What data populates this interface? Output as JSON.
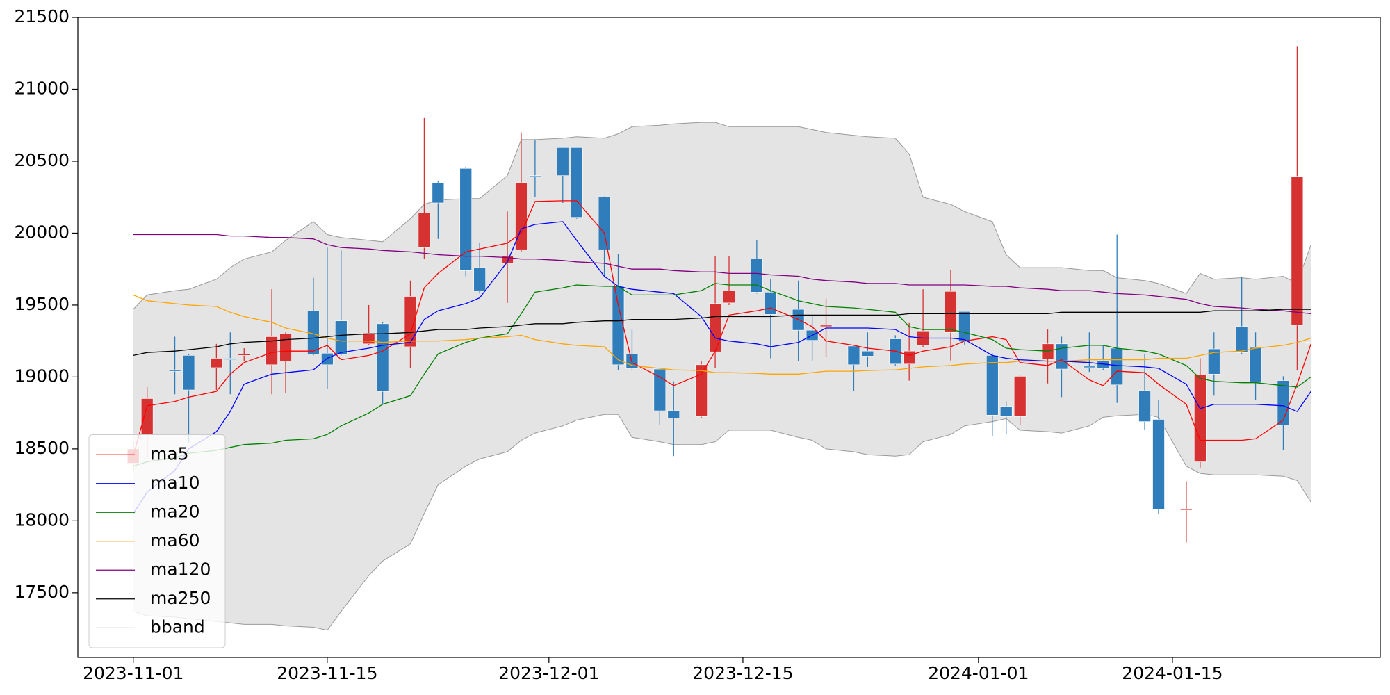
{
  "chart_data": {
    "type": "candlestick",
    "x": [
      "2023-11-01",
      "2023-11-02",
      "2023-11-04",
      "2023-11-05",
      "2023-11-07",
      "2023-11-08",
      "2023-11-09",
      "2023-11-11",
      "2023-11-12",
      "2023-11-14",
      "2023-11-15",
      "2023-11-16",
      "2023-11-18",
      "2023-11-19",
      "2023-11-21",
      "2023-11-22",
      "2023-11-23",
      "2023-11-25",
      "2023-11-26",
      "2023-11-28",
      "2023-11-29",
      "2023-11-30",
      "2023-12-02",
      "2023-12-03",
      "2023-12-05",
      "2023-12-06",
      "2023-12-07",
      "2023-12-09",
      "2023-12-10",
      "2023-12-12",
      "2023-12-13",
      "2023-12-14",
      "2023-12-16",
      "2023-12-17",
      "2023-12-19",
      "2023-12-20",
      "2023-12-21",
      "2023-12-23",
      "2023-12-24",
      "2023-12-26",
      "2023-12-27",
      "2023-12-28",
      "2023-12-30",
      "2023-12-31",
      "2024-01-02",
      "2024-01-03",
      "2024-01-04",
      "2024-01-06",
      "2024-01-07",
      "2024-01-09",
      "2024-01-10",
      "2024-01-11",
      "2024-01-13",
      "2024-01-14",
      "2024-01-16",
      "2024-01-17",
      "2024-01-18",
      "2024-01-20",
      "2024-01-21",
      "2024-01-23",
      "2024-01-24",
      "2024-01-25"
    ],
    "open": [
      18400,
      18600,
      19050,
      19150,
      19065,
      19130,
      19150,
      19085,
      19110,
      19460,
      19165,
      19390,
      19230,
      19370,
      19210,
      19900,
      20350,
      20450,
      19760,
      19790,
      19885,
      20400,
      20595,
      20595,
      20250,
      19630,
      19160,
      19055,
      18765,
      18725,
      19175,
      19515,
      19820,
      19590,
      19470,
      19325,
      19350,
      19215,
      19180,
      19265,
      19090,
      19220,
      19310,
      19455,
      19150,
      18795,
      18725,
      19125,
      19230,
      19075,
      19115,
      19200,
      18905,
      18705,
      18075,
      18410,
      19195,
      19350,
      19205,
      18975,
      19360,
      19240
    ],
    "high": [
      18550,
      18930,
      19280,
      19160,
      19230,
      19310,
      19200,
      19610,
      19310,
      19690,
      19900,
      19880,
      19500,
      19380,
      19670,
      20800,
      20360,
      20460,
      19935,
      20150,
      20700,
      20650,
      20600,
      20600,
      20255,
      19855,
      19330,
      19060,
      18970,
      19110,
      19840,
      19840,
      19950,
      19680,
      19670,
      19435,
      19545,
      19220,
      19310,
      19290,
      19375,
      19610,
      19745,
      19460,
      19165,
      18830,
      19010,
      19330,
      19280,
      19310,
      19220,
      19990,
      19160,
      18840,
      18275,
      19130,
      19310,
      19695,
      19310,
      19005,
      21300,
      19240
    ],
    "low": [
      18350,
      18450,
      18880,
      18540,
      18910,
      18880,
      19110,
      18880,
      18890,
      19150,
      18920,
      19150,
      19220,
      18810,
      19065,
      19820,
      19960,
      19700,
      19580,
      19515,
      19870,
      20250,
      20210,
      20100,
      19705,
      19050,
      19050,
      18665,
      18450,
      18715,
      19065,
      19500,
      19580,
      19130,
      19110,
      19110,
      19140,
      18905,
      19070,
      19080,
      18975,
      19205,
      19115,
      19225,
      18590,
      18600,
      18665,
      18955,
      18860,
      19035,
      19050,
      18820,
      18630,
      18050,
      17850,
      18370,
      18870,
      19160,
      18840,
      18490,
      19045,
      19240
    ],
    "close": [
      18500,
      18850,
      19040,
      18910,
      19130,
      19120,
      19160,
      19280,
      19300,
      19160,
      19085,
      19160,
      19305,
      18900,
      19560,
      20140,
      20210,
      19740,
      19600,
      19840,
      20350,
      20395,
      20400,
      20110,
      19885,
      19085,
      19060,
      18765,
      18715,
      19085,
      19510,
      19600,
      19590,
      19435,
      19325,
      19255,
      19360,
      19085,
      19145,
      19090,
      19180,
      19320,
      19595,
      19245,
      18735,
      18725,
      19005,
      19230,
      19055,
      19065,
      19060,
      18945,
      18690,
      18080,
      18080,
      19015,
      19020,
      19170,
      18960,
      18665,
      20395,
      19240
    ],
    "up_color": "#d63232",
    "down_color": "#2f7dbb",
    "series": [
      {
        "name": "ma5",
        "color": "#ff0000",
        "values": [
          18450,
          18800,
          18830,
          18860,
          18900,
          19020,
          19100,
          19170,
          19180,
          19180,
          19220,
          19120,
          19150,
          19180,
          19300,
          19620,
          19720,
          19870,
          19890,
          19930,
          20000,
          20220,
          20225,
          20225,
          20000,
          19500,
          19100,
          19000,
          18940,
          19020,
          19180,
          19430,
          19460,
          19480,
          19400,
          19350,
          19250,
          19220,
          19200,
          19180,
          19150,
          19180,
          19210,
          19250,
          19280,
          19260,
          19100,
          19080,
          19120,
          18980,
          18940,
          19040,
          19030,
          18950,
          18810,
          18560,
          18560,
          18560,
          18570,
          18700,
          18950,
          19230
        ]
      },
      {
        "name": "ma10",
        "color": "#0000ff",
        "values": [
          18050,
          18200,
          18350,
          18500,
          18620,
          18760,
          18950,
          19020,
          19030,
          19050,
          19130,
          19170,
          19200,
          19220,
          19240,
          19400,
          19460,
          19510,
          19550,
          19800,
          20030,
          20060,
          20080,
          19950,
          19700,
          19630,
          19610,
          19590,
          19580,
          19420,
          19270,
          19250,
          19230,
          19210,
          19240,
          19290,
          19340,
          19340,
          19340,
          19330,
          19280,
          19270,
          19270,
          19260,
          19150,
          19130,
          19120,
          19110,
          19110,
          19100,
          19090,
          19080,
          19070,
          19060,
          18950,
          18780,
          18810,
          18810,
          18810,
          18800,
          18760,
          18900
        ]
      },
      {
        "name": "ma20",
        "color": "#008000",
        "values": [
          18380,
          18410,
          18440,
          18470,
          18490,
          18510,
          18530,
          18540,
          18560,
          18570,
          18600,
          18660,
          18750,
          18810,
          18870,
          19020,
          19160,
          19240,
          19270,
          19300,
          19440,
          19590,
          19620,
          19640,
          19630,
          19630,
          19570,
          19570,
          19570,
          19600,
          19650,
          19640,
          19640,
          19600,
          19530,
          19510,
          19490,
          19480,
          19470,
          19450,
          19350,
          19330,
          19330,
          19310,
          19260,
          19200,
          19190,
          19180,
          19200,
          19220,
          19220,
          19200,
          19180,
          19160,
          19080,
          18990,
          18970,
          18960,
          18960,
          18940,
          18930,
          19000
        ]
      },
      {
        "name": "ma60",
        "color": "#ffa500",
        "values": [
          19570,
          19530,
          19510,
          19500,
          19490,
          19450,
          19420,
          19380,
          19340,
          19300,
          19270,
          19250,
          19250,
          19240,
          19250,
          19250,
          19250,
          19260,
          19270,
          19280,
          19290,
          19260,
          19230,
          19220,
          19210,
          19120,
          19080,
          19060,
          19050,
          19045,
          19030,
          19030,
          19025,
          19020,
          19020,
          19030,
          19040,
          19040,
          19045,
          19050,
          19060,
          19070,
          19080,
          19090,
          19100,
          19100,
          19110,
          19110,
          19110,
          19120,
          19120,
          19120,
          19120,
          19130,
          19130,
          19150,
          19170,
          19180,
          19200,
          19220,
          19240,
          19270
        ]
      },
      {
        "name": "ma120",
        "color": "#800080",
        "values": [
          19990,
          19990,
          19990,
          19990,
          19990,
          19980,
          19980,
          19970,
          19970,
          19960,
          19920,
          19900,
          19890,
          19880,
          19870,
          19860,
          19850,
          19840,
          19840,
          19830,
          19820,
          19820,
          19810,
          19800,
          19790,
          19770,
          19750,
          19750,
          19740,
          19730,
          19730,
          19720,
          19720,
          19710,
          19700,
          19680,
          19670,
          19660,
          19650,
          19650,
          19640,
          19640,
          19640,
          19640,
          19630,
          19630,
          19620,
          19610,
          19600,
          19600,
          19590,
          19580,
          19570,
          19560,
          19540,
          19510,
          19490,
          19480,
          19470,
          19460,
          19450,
          19440
        ]
      },
      {
        "name": "ma250",
        "color": "#000000",
        "values": [
          19150,
          19170,
          19180,
          19190,
          19210,
          19230,
          19240,
          19250,
          19260,
          19270,
          19280,
          19290,
          19300,
          19300,
          19310,
          19320,
          19330,
          19330,
          19340,
          19350,
          19360,
          19370,
          19370,
          19380,
          19390,
          19390,
          19400,
          19400,
          19400,
          19410,
          19420,
          19420,
          19420,
          19420,
          19430,
          19430,
          19430,
          19430,
          19430,
          19430,
          19440,
          19440,
          19440,
          19440,
          19440,
          19440,
          19440,
          19440,
          19450,
          19450,
          19450,
          19450,
          19450,
          19450,
          19450,
          19450,
          19460,
          19460,
          19460,
          19470,
          19470,
          19470
        ]
      }
    ],
    "bband": {
      "name": "bband",
      "color": "#999999",
      "fill": "#e4e4e4",
      "upper": [
        19470,
        19570,
        19600,
        19610,
        19680,
        19760,
        19820,
        19870,
        19950,
        20080,
        19990,
        19970,
        19950,
        19940,
        20100,
        20200,
        20230,
        20240,
        20240,
        20400,
        20650,
        20650,
        20660,
        20670,
        20660,
        20690,
        20740,
        20750,
        20760,
        20770,
        20770,
        20740,
        20740,
        20740,
        20740,
        20720,
        20700,
        20680,
        20670,
        20660,
        20550,
        20250,
        20200,
        20150,
        20080,
        19850,
        19760,
        19760,
        19760,
        19740,
        19740,
        19690,
        19670,
        19650,
        19580,
        19720,
        19680,
        19690,
        19680,
        19700,
        19650,
        19920
      ],
      "lower": [
        17370,
        17340,
        17330,
        17320,
        17300,
        17290,
        17280,
        17280,
        17270,
        17260,
        17240,
        17370,
        17620,
        17720,
        17840,
        18050,
        18250,
        18380,
        18430,
        18480,
        18560,
        18610,
        18660,
        18700,
        18740,
        18740,
        18580,
        18550,
        18530,
        18530,
        18550,
        18630,
        18630,
        18630,
        18580,
        18560,
        18500,
        18480,
        18460,
        18450,
        18460,
        18550,
        18600,
        18660,
        18690,
        18710,
        18630,
        18620,
        18610,
        18660,
        18720,
        18730,
        18740,
        18720,
        18380,
        18330,
        18320,
        18320,
        18320,
        18310,
        18280,
        18130
      ]
    },
    "xlim": [
      "2023-10-28",
      "2024-01-30"
    ],
    "xticks": [
      "2023-11-01",
      "2023-11-15",
      "2023-12-01",
      "2023-12-15",
      "2024-01-01",
      "2024-01-15"
    ],
    "ylim": [
      17050,
      21500
    ],
    "yticks": [
      17500,
      18000,
      18500,
      19000,
      19500,
      20000,
      20500,
      21000,
      21500
    ],
    "legend": "lower left"
  }
}
